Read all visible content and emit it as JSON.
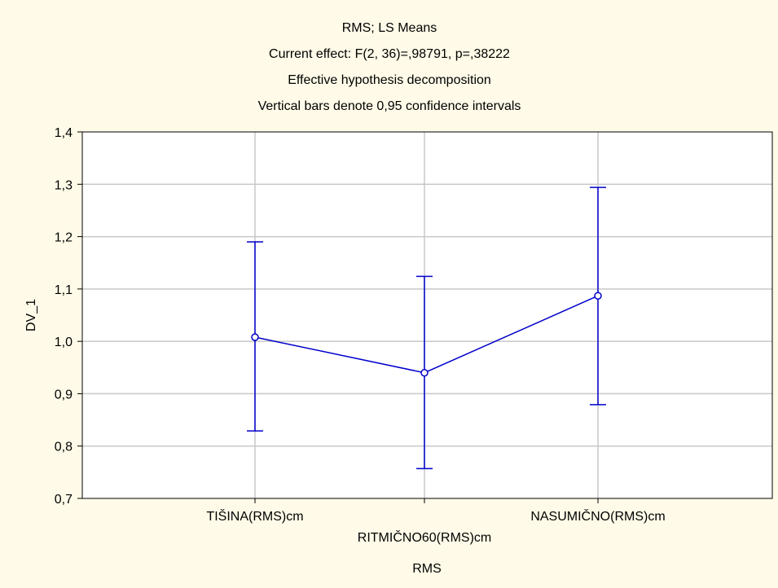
{
  "chart_data": {
    "type": "line",
    "title_lines": [
      "RMS; LS Means",
      "Current effect: F(2, 36)=,98791, p=,38222",
      "Effective hypothesis decomposition",
      "Vertical bars denote 0,95 confidence intervals"
    ],
    "xlabel": "RMS",
    "ylabel": "DV_1",
    "categories": [
      "TIŠINA(RMS)cm",
      "RITMIČNO60(RMS)cm",
      "NASUMIČNO(RMS)cm"
    ],
    "series": [
      {
        "values": [
          1.008,
          0.94,
          1.087
        ],
        "ci_lower": [
          0.829,
          0.757,
          0.879
        ],
        "ci_upper": [
          1.19,
          1.124,
          1.294
        ]
      }
    ],
    "ylim": [
      0.7,
      1.4
    ],
    "yticks": [
      0.7,
      0.8,
      0.9,
      1.0,
      1.1,
      1.2,
      1.3,
      1.4
    ],
    "ytick_labels": [
      "0,7",
      "0,8",
      "0,9",
      "1,0",
      "1,1",
      "1,2",
      "1,3",
      "1,4"
    ],
    "grid": true,
    "colors": {
      "series": "#0000cc",
      "grid": "#c8c8c8",
      "background": "#fffbe8",
      "plot_area": "#ffffff"
    }
  }
}
